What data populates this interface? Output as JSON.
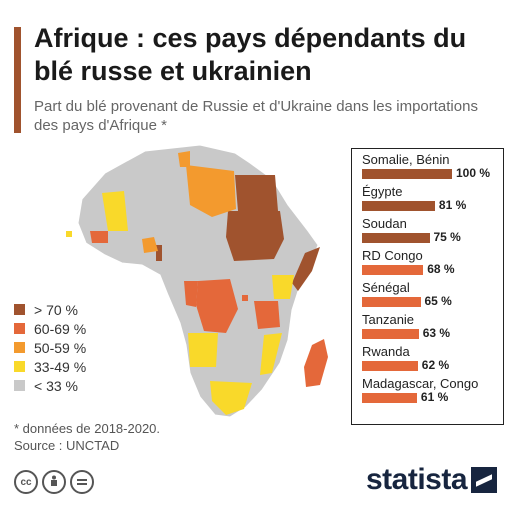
{
  "header": {
    "title": "Afrique : ces pays dépendants du blé russe et ukrainien",
    "subtitle": "Part du blé provenant de Russie et d'Ukraine dans les importations des pays d'Afrique *"
  },
  "colors": {
    "accent": "#a0532e",
    "gt70": "#a0532e",
    "p60_69": "#e4683a",
    "p50_59": "#f39a2e",
    "p33_49": "#f9d92a",
    "lt33": "#c9c9c9"
  },
  "legend": [
    {
      "label": "> 70 %",
      "color": "#a0532e"
    },
    {
      "label": "60-69 %",
      "color": "#e4683a"
    },
    {
      "label": "50-59 %",
      "color": "#f39a2e"
    },
    {
      "label": "33-49 %",
      "color": "#f9d92a"
    },
    {
      "label": "< 33 %",
      "color": "#c9c9c9"
    }
  ],
  "chart_data": {
    "type": "bar",
    "categories": [
      "Somalie, Bénin",
      "Égypte",
      "Soudan",
      "RD Congo",
      "Sénégal",
      "Tanzanie",
      "Rwanda",
      "Madagascar, Congo"
    ],
    "values": [
      100,
      81,
      75,
      68,
      65,
      63,
      62,
      61
    ],
    "value_labels": [
      "100 %",
      "81 %",
      "75 %",
      "68 %",
      "65 %",
      "63 %",
      "62 %",
      "61 %"
    ],
    "unit": "%",
    "xlim": [
      0,
      100
    ],
    "colors": [
      "#a0532e",
      "#a0532e",
      "#a0532e",
      "#e4683a",
      "#e4683a",
      "#e4683a",
      "#e4683a",
      "#e4683a"
    ]
  },
  "footnote": {
    "data_note": "* données de 2018-2020.",
    "source": "Source : UNCTAD"
  },
  "license_icons": [
    "cc",
    "by",
    "nd"
  ],
  "brand": "statista"
}
